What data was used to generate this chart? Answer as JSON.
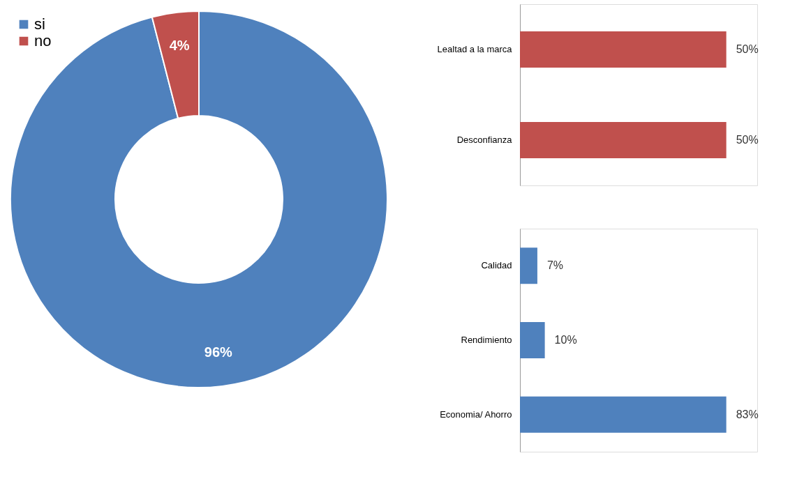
{
  "chart_data": [
    {
      "type": "donut",
      "categories": [
        "si",
        "no"
      ],
      "values": [
        96,
        4
      ],
      "colors": [
        "#4f81bd",
        "#c0504d"
      ],
      "value_labels": [
        "96%",
        "4%"
      ],
      "legend": "top left"
    },
    {
      "type": "bar",
      "orientation": "horizontal",
      "categories": [
        "Lealtad a la marca",
        "Desconfianza"
      ],
      "series": [
        {
          "color": "#c0504d",
          "values": [
            50,
            50
          ],
          "value_labels": [
            "50%",
            "50%"
          ]
        }
      ]
    },
    {
      "type": "bar",
      "orientation": "horizontal",
      "categories": [
        "Calidad",
        "Rendimiento",
        "Economia/ Ahorro"
      ],
      "series": [
        {
          "color": "#4f81bd",
          "values": [
            7,
            10,
            83
          ],
          "value_labels": [
            "7%",
            "10%",
            "83%"
          ]
        }
      ]
    }
  ]
}
